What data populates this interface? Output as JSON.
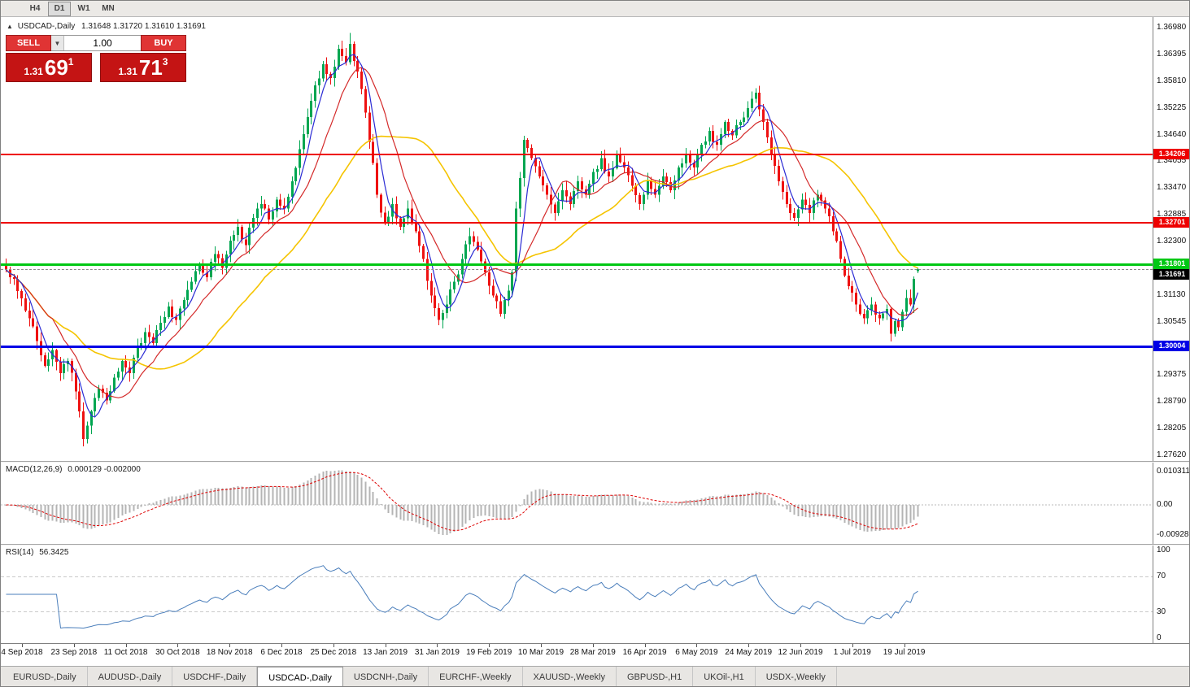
{
  "toolbar": {
    "timeframes": [
      {
        "label": "H4",
        "active": false
      },
      {
        "label": "D1",
        "active": true
      },
      {
        "label": "W1",
        "active": false
      },
      {
        "label": "MN",
        "active": false
      }
    ]
  },
  "chart_header": {
    "collapse_icon": "▲",
    "symbol_title": "USDCAD-,Daily",
    "ohlc": "1.31648 1.31720 1.31610 1.31691"
  },
  "trade_panel": {
    "sell_label": "SELL",
    "buy_label": "BUY",
    "volume": "1.00",
    "dropdown_icon": "▼",
    "price_prefix": "1.31",
    "sell_big": "69",
    "sell_sup": "1",
    "buy_big": "71",
    "buy_sup": "3"
  },
  "current_price": {
    "label": "1.31691",
    "value": 1.31691,
    "tag_color": "#000000"
  },
  "hlines": [
    {
      "id": "resistance-line-1",
      "price": 1.34206,
      "label": "1.34206",
      "color": "#ee0000",
      "thickness": 2
    },
    {
      "id": "resistance-line-2",
      "price": 1.32701,
      "label": "1.32701",
      "color": "#ee0000",
      "thickness": 2
    },
    {
      "id": "support-line-green",
      "price": 1.31801,
      "label": "1.31801",
      "color": "#00c814",
      "thickness": 3
    },
    {
      "id": "support-line-blue",
      "price": 1.30004,
      "label": "1.30004",
      "color": "#0000e6",
      "thickness": 3
    }
  ],
  "colors": {
    "up": "#00a651",
    "down": "#ee1111",
    "macd_hist": "#b4b4b4",
    "macd_signal": "#dd0000",
    "rsi": "#4a7ebb"
  },
  "chart_data": {
    "type": "candlestick",
    "symbol": "USDCAD",
    "period": "Daily",
    "count": 237,
    "y_min": 1.2762,
    "y_max": 1.3698,
    "y_axis_labels": [
      "1.36980",
      "1.36395",
      "1.35810",
      "1.35225",
      "1.34640",
      "1.34055",
      "1.33470",
      "1.32885",
      "1.32300",
      "1.31715",
      "1.31130",
      "1.30545",
      "1.29960",
      "1.29375",
      "1.28790",
      "1.28205",
      "1.27620"
    ],
    "x_labels": [
      "4 Sep 2018",
      "23 Sep 2018",
      "11 Oct 2018",
      "30 Oct 2018",
      "18 Nov 2018",
      "6 Dec 2018",
      "25 Dec 2018",
      "13 Jan 2019",
      "31 Jan 2019",
      "19 Feb 2019",
      "10 Mar 2019",
      "28 Mar 2019",
      "16 Apr 2019",
      "6 May 2019",
      "24 May 2019",
      "12 Jun 2019",
      "1 Jul 2019",
      "19 Jul 2019"
    ],
    "x_label_start": 26,
    "x_label_step": 63.8,
    "close_anchors": [
      [
        0,
        1.3168
      ],
      [
        2,
        1.3148
      ],
      [
        4,
        1.3105
      ],
      [
        6,
        1.3062
      ],
      [
        8,
        1.3012
      ],
      [
        10,
        1.2958
      ],
      [
        12,
        1.2992
      ],
      [
        14,
        1.2942
      ],
      [
        16,
        1.2968
      ],
      [
        18,
        1.2902
      ],
      [
        20,
        1.2798
      ],
      [
        22,
        1.2858
      ],
      [
        24,
        1.2908
      ],
      [
        26,
        1.2882
      ],
      [
        28,
        1.2932
      ],
      [
        30,
        1.2968
      ],
      [
        32,
        1.2942
      ],
      [
        34,
        1.2998
      ],
      [
        36,
        1.3032
      ],
      [
        38,
        1.3008
      ],
      [
        40,
        1.3052
      ],
      [
        42,
        1.3088
      ],
      [
        44,
        1.3058
      ],
      [
        46,
        1.3102
      ],
      [
        48,
        1.3142
      ],
      [
        50,
        1.3182
      ],
      [
        52,
        1.3152
      ],
      [
        54,
        1.3202
      ],
      [
        56,
        1.3172
      ],
      [
        58,
        1.3232
      ],
      [
        60,
        1.3262
      ],
      [
        62,
        1.3222
      ],
      [
        64,
        1.3282
      ],
      [
        66,
        1.3312
      ],
      [
        68,
        1.3278
      ],
      [
        70,
        1.3322
      ],
      [
        72,
        1.3302
      ],
      [
        74,
        1.3362
      ],
      [
        76,
        1.3432
      ],
      [
        78,
        1.3502
      ],
      [
        80,
        1.3572
      ],
      [
        82,
        1.3618
      ],
      [
        84,
        1.3588
      ],
      [
        86,
        1.3652
      ],
      [
        88,
        1.3622
      ],
      [
        89,
        1.3662
      ],
      [
        91,
        1.3602
      ],
      [
        93,
        1.3512
      ],
      [
        95,
        1.3402
      ],
      [
        96,
        1.3332
      ],
      [
        98,
        1.3272
      ],
      [
        100,
        1.3312
      ],
      [
        102,
        1.3262
      ],
      [
        104,
        1.3302
      ],
      [
        106,
        1.3252
      ],
      [
        108,
        1.3192
      ],
      [
        110,
        1.3112
      ],
      [
        112,
        1.3058
      ],
      [
        114,
        1.3092
      ],
      [
        116,
        1.3142
      ],
      [
        118,
        1.3192
      ],
      [
        120,
        1.3242
      ],
      [
        122,
        1.3212
      ],
      [
        124,
        1.3162
      ],
      [
        126,
        1.3112
      ],
      [
        128,
        1.3072
      ],
      [
        130,
        1.3122
      ],
      [
        131,
        1.3162
      ],
      [
        132,
        1.3302
      ],
      [
        134,
        1.3452
      ],
      [
        136,
        1.3412
      ],
      [
        138,
        1.3372
      ],
      [
        140,
        1.3332
      ],
      [
        142,
        1.3292
      ],
      [
        144,
        1.3342
      ],
      [
        146,
        1.3312
      ],
      [
        148,
        1.3362
      ],
      [
        150,
        1.3332
      ],
      [
        152,
        1.3382
      ],
      [
        154,
        1.3412
      ],
      [
        156,
        1.3372
      ],
      [
        158,
        1.3422
      ],
      [
        160,
        1.3392
      ],
      [
        162,
        1.3352
      ],
      [
        164,
        1.3312
      ],
      [
        166,
        1.3362
      ],
      [
        168,
        1.3332
      ],
      [
        170,
        1.3372
      ],
      [
        172,
        1.3342
      ],
      [
        174,
        1.3392
      ],
      [
        176,
        1.3422
      ],
      [
        178,
        1.3392
      ],
      [
        180,
        1.3442
      ],
      [
        182,
        1.3472
      ],
      [
        184,
        1.3442
      ],
      [
        186,
        1.3492
      ],
      [
        188,
        1.3462
      ],
      [
        190,
        1.3492
      ],
      [
        192,
        1.3522
      ],
      [
        194,
        1.3556
      ],
      [
        196,
        1.3492
      ],
      [
        198,
        1.3422
      ],
      [
        200,
        1.3362
      ],
      [
        202,
        1.3312
      ],
      [
        204,
        1.3282
      ],
      [
        206,
        1.3322
      ],
      [
        208,
        1.3292
      ],
      [
        210,
        1.3332
      ],
      [
        212,
        1.3302
      ],
      [
        214,
        1.3252
      ],
      [
        216,
        1.3192
      ],
      [
        218,
        1.3132
      ],
      [
        220,
        1.3092
      ],
      [
        222,
        1.3062
      ],
      [
        224,
        1.3092
      ],
      [
        226,
        1.3062
      ],
      [
        228,
        1.3082
      ],
      [
        229,
        1.3028
      ],
      [
        230,
        1.3056
      ],
      [
        231,
        1.3042
      ],
      [
        232,
        1.3076
      ],
      [
        233,
        1.3106
      ],
      [
        234,
        1.3092
      ],
      [
        235,
        1.3148
      ],
      [
        236,
        1.31691
      ]
    ],
    "low_overrides": {
      "20": 1.2782
    },
    "high_overrides": {
      "89": 1.36861,
      "194": 1.35651
    },
    "last_candle": {
      "open": 1.31648,
      "high": 1.3172,
      "low": 1.3161,
      "close": 1.31691
    },
    "ma_overlays": [
      {
        "period": 5,
        "color": "#2b2bd4",
        "width": 1.2
      },
      {
        "period": 13,
        "color": "#d42a2a",
        "width": 1.2
      },
      {
        "period": 34,
        "color": "#f5c400",
        "width": 1.6
      }
    ],
    "indicators": [
      {
        "name": "MACD",
        "title": "MACD(12,26,9)",
        "values": "0.000129 -0.002000",
        "params": [
          12,
          26,
          9
        ],
        "range": [
          -0.0105,
          0.0115
        ],
        "y_labels": [
          {
            "text": "0.010311",
            "value": 0.010311
          },
          {
            "text": "0.00",
            "value": 0
          },
          {
            "text": "-0.0092803",
            "value": -0.0092803
          }
        ]
      },
      {
        "name": "RSI",
        "title": "RSI(14)",
        "value": "56.3425",
        "period": 14,
        "levels": [
          70,
          30
        ],
        "range": [
          0,
          100
        ],
        "y_labels": [
          {
            "text": "100",
            "value": 100
          },
          {
            "text": "70",
            "value": 70
          },
          {
            "text": "30",
            "value": 30
          },
          {
            "text": "0",
            "value": 0
          }
        ]
      }
    ]
  },
  "tabs": {
    "items": [
      {
        "label": "EURUSD-,Daily",
        "active": false
      },
      {
        "label": "AUDUSD-,Daily",
        "active": false
      },
      {
        "label": "USDCHF-,Daily",
        "active": false
      },
      {
        "label": "USDCAD-,Daily",
        "active": true
      },
      {
        "label": "USDCNH-,Daily",
        "active": false
      },
      {
        "label": "EURCHF-,Weekly",
        "active": false
      },
      {
        "label": "XAUUSD-,Weekly",
        "active": false
      },
      {
        "label": "GBPUSD-,H1",
        "active": false
      },
      {
        "label": "UKOil-,H1",
        "active": false
      },
      {
        "label": "USDX-,Weekly",
        "active": false
      }
    ]
  }
}
